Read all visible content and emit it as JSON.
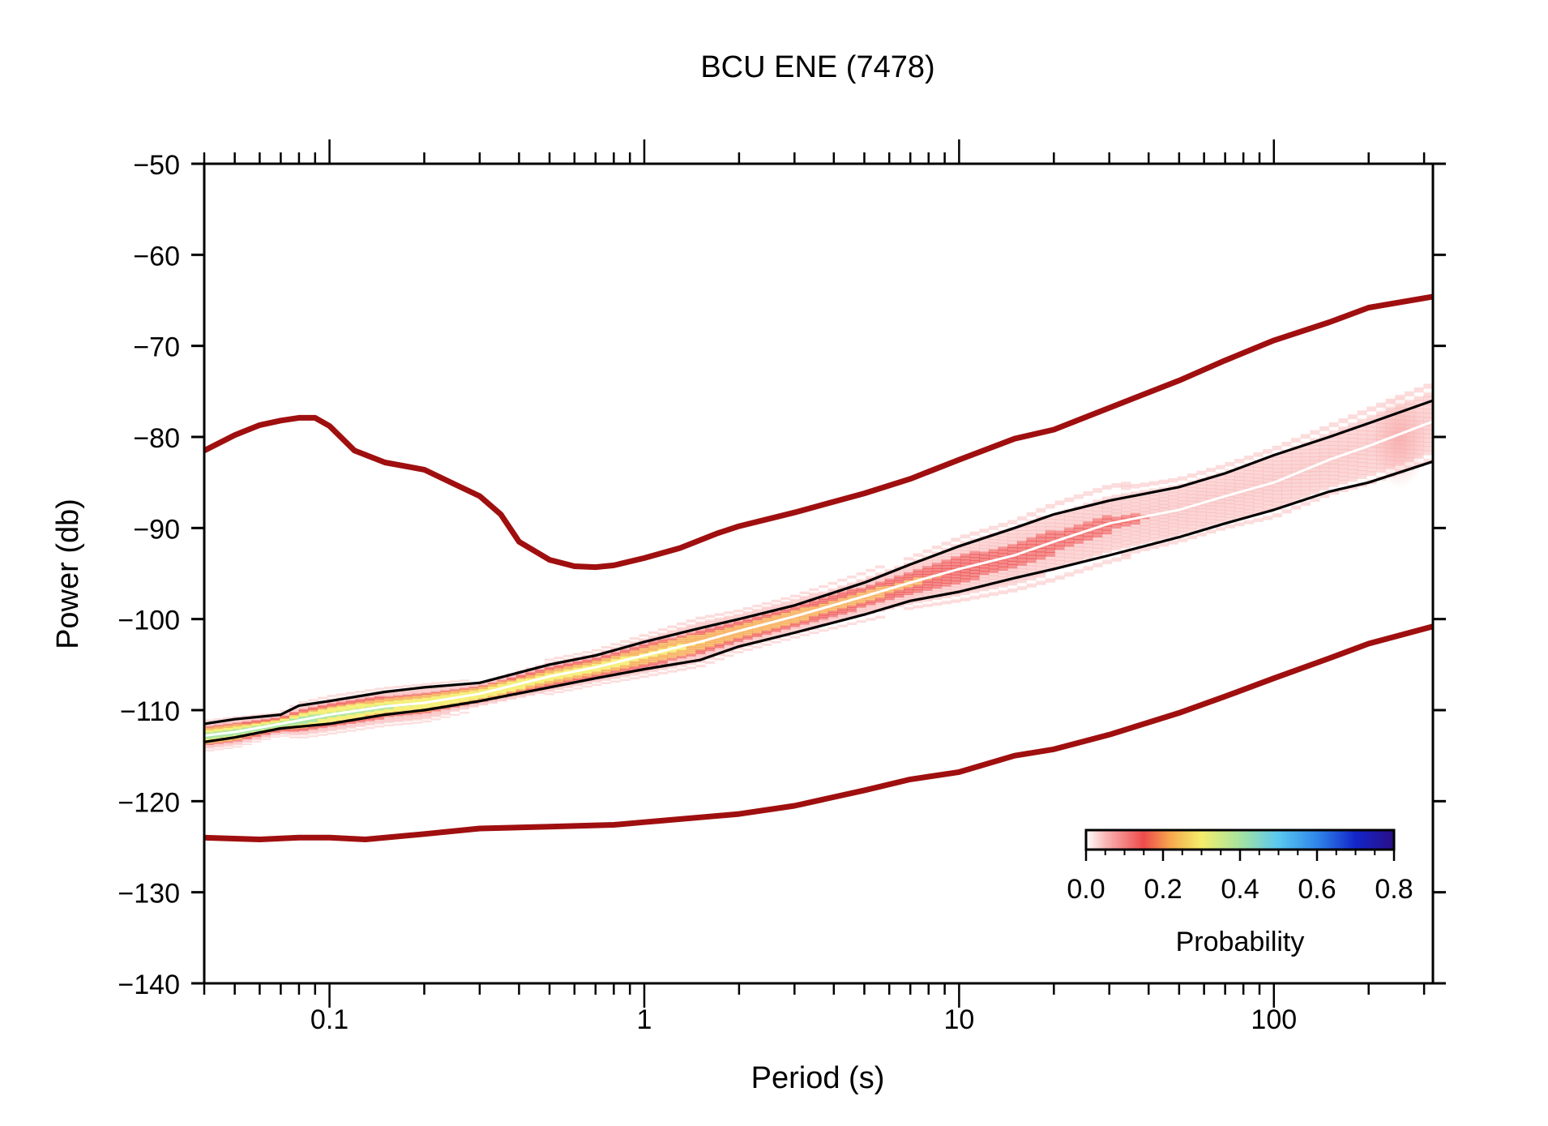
{
  "chart_data": {
    "type": "line",
    "title": "BCU ENE (7478)",
    "xlabel": "Period (s)",
    "ylabel": "Power (db)",
    "x_scale": "log",
    "xlim": [
      0.04,
      320
    ],
    "ylim": [
      -140,
      -50
    ],
    "x_ticks": [
      0.1,
      1,
      10,
      100
    ],
    "x_tick_labels": [
      "0.1",
      "1",
      "10",
      "100"
    ],
    "y_ticks": [
      -50,
      -60,
      -70,
      -80,
      -90,
      -100,
      -110,
      -120,
      -130,
      -140
    ],
    "y_tick_labels": [
      "−50",
      "−60",
      "−70",
      "−80",
      "−90",
      "−100",
      "−110",
      "−120",
      "−130",
      "−140"
    ],
    "grid": false,
    "series": [
      {
        "role": "noise-model-high",
        "color": "#a00f0f",
        "x": [
          0.04,
          0.05,
          0.06,
          0.07,
          0.08,
          0.09,
          0.1,
          0.12,
          0.15,
          0.2,
          0.25,
          0.3,
          0.35,
          0.4,
          0.5,
          0.6,
          0.7,
          0.8,
          1,
          1.3,
          1.7,
          2,
          3,
          5,
          7,
          10,
          15,
          20,
          30,
          50,
          70,
          100,
          150,
          200,
          320
        ],
        "y": [
          -81.5,
          -79.8,
          -78.7,
          -78.2,
          -77.9,
          -77.9,
          -78.8,
          -81.5,
          -82.8,
          -83.6,
          -85.2,
          -86.5,
          -88.5,
          -91.5,
          -93.5,
          -94.2,
          -94.3,
          -94.1,
          -93.3,
          -92.2,
          -90.6,
          -89.8,
          -88.3,
          -86.2,
          -84.6,
          -82.5,
          -80.2,
          -79.2,
          -76.8,
          -73.8,
          -71.6,
          -69.4,
          -67.4,
          -65.8,
          -64.6
        ]
      },
      {
        "role": "noise-model-low",
        "color": "#a00f0f",
        "x": [
          0.04,
          0.06,
          0.08,
          0.1,
          0.13,
          0.2,
          0.3,
          0.5,
          0.8,
          1,
          2,
          3,
          5,
          7,
          10,
          15,
          20,
          30,
          50,
          70,
          100,
          150,
          200,
          320
        ],
        "y": [
          -124,
          -124.2,
          -124,
          -124,
          -124.2,
          -123.6,
          -123,
          -122.8,
          -122.6,
          -122.3,
          -121.4,
          -120.5,
          -118.8,
          -117.6,
          -116.8,
          -115,
          -114.3,
          -112.7,
          -110.3,
          -108.5,
          -106.5,
          -104.3,
          -102.7,
          -100.8
        ]
      },
      {
        "role": "percentile-upper",
        "color": "#000000",
        "x": [
          0.04,
          0.05,
          0.07,
          0.08,
          0.1,
          0.15,
          0.2,
          0.3,
          0.5,
          0.7,
          1,
          1.5,
          2,
          3,
          5,
          7,
          10,
          15,
          20,
          30,
          50,
          70,
          100,
          150,
          200,
          320
        ],
        "y": [
          -111.5,
          -111,
          -110.5,
          -109.5,
          -109,
          -108,
          -107.5,
          -107,
          -105,
          -104,
          -102.5,
          -101,
          -100,
          -98.5,
          -96,
          -94,
          -92,
          -90,
          -88.5,
          -87,
          -85.5,
          -84,
          -82,
          -80,
          -78.5,
          -76
        ]
      },
      {
        "role": "median",
        "color": "#ffffff",
        "x": [
          0.04,
          0.05,
          0.07,
          0.1,
          0.15,
          0.2,
          0.3,
          0.5,
          0.7,
          1,
          1.5,
          2,
          3,
          5,
          7,
          10,
          15,
          20,
          30,
          50,
          70,
          100,
          150,
          200,
          320
        ],
        "y": [
          -112.8,
          -112.4,
          -111.5,
          -110.5,
          -109.6,
          -109.2,
          -108.2,
          -106.3,
          -105.3,
          -104,
          -102.5,
          -101.3,
          -99.7,
          -97.5,
          -96,
          -94.5,
          -93,
          -91.5,
          -89.5,
          -88,
          -86.5,
          -85,
          -82.5,
          -81,
          -78.3
        ]
      },
      {
        "role": "percentile-lower",
        "color": "#000000",
        "x": [
          0.04,
          0.05,
          0.07,
          0.1,
          0.15,
          0.2,
          0.3,
          0.5,
          0.7,
          1,
          1.5,
          2,
          3,
          5,
          7,
          10,
          15,
          20,
          30,
          50,
          70,
          100,
          150,
          200,
          320
        ],
        "y": [
          -113.5,
          -113,
          -112,
          -111.5,
          -110.5,
          -110,
          -109,
          -107.5,
          -106.5,
          -105.5,
          -104.5,
          -103,
          -101.5,
          -99.5,
          -98,
          -97,
          -95.5,
          -94.5,
          -93,
          -91,
          -89.5,
          -88,
          -86,
          -85,
          -82.7
        ]
      }
    ],
    "colorbar": {
      "label": "Probability",
      "range": [
        0,
        0.8
      ],
      "ticks": [
        "0.0",
        "0.2",
        "0.4",
        "0.6",
        "0.8"
      ],
      "placement": "bottom-right",
      "stops": [
        {
          "v": 0.0,
          "color": "#ffffff"
        },
        {
          "v": 0.05,
          "color": "#f9b6b6"
        },
        {
          "v": 0.15,
          "color": "#ee4b4b"
        },
        {
          "v": 0.22,
          "color": "#f6a94e"
        },
        {
          "v": 0.3,
          "color": "#f4ee6b"
        },
        {
          "v": 0.4,
          "color": "#a6e3a0"
        },
        {
          "v": 0.5,
          "color": "#59c8f0"
        },
        {
          "v": 0.6,
          "color": "#2f86ea"
        },
        {
          "v": 0.7,
          "color": "#1326c9"
        },
        {
          "v": 0.8,
          "color": "#2a0f86"
        }
      ]
    }
  }
}
